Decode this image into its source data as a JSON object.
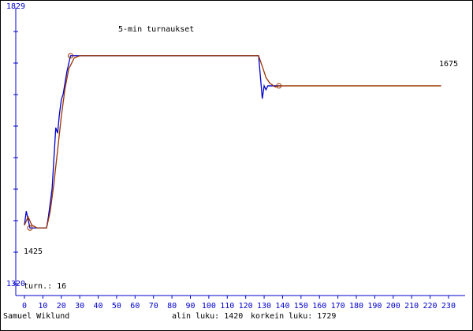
{
  "chart_data": {
    "type": "line",
    "title": "5-min turnaukset",
    "player": "Samuel Wiklund",
    "tournaments_label": "turn.: 16",
    "lowest_label": "alin luku: 1420",
    "highest_label": "korkein luku: 1729",
    "annotations": [
      "1425",
      "1675"
    ],
    "xlim": [
      -4.7,
      239
    ],
    "xticks": [
      0,
      10,
      20,
      30,
      40,
      50,
      60,
      70,
      80,
      90,
      100,
      110,
      120,
      130,
      140,
      150,
      160,
      170,
      180,
      190,
      200,
      210,
      220,
      230
    ],
    "ylim": [
      1320,
      1829
    ],
    "yticks": [
      1320,
      1829
    ],
    "axis_color": "#0000cc",
    "series": [
      {
        "color": "#0000cc",
        "x": [
          0,
          1,
          3,
          12,
          13,
          15,
          16,
          17,
          18,
          19,
          20,
          21,
          23,
          25,
          127,
          129,
          130,
          131,
          132,
          139
        ],
        "values": [
          1425,
          1450,
          1420,
          1420,
          1440,
          1490,
          1545,
          1600,
          1590,
          1625,
          1650,
          1660,
          1700,
          1729,
          1729,
          1652,
          1675,
          1668,
          1675,
          1675
        ]
      },
      {
        "color": "#993300",
        "x": [
          0,
          2,
          4,
          7,
          12,
          14,
          16,
          18,
          20,
          22,
          24,
          27,
          30,
          127,
          129,
          131,
          133,
          136,
          138,
          226
        ],
        "values": [
          1425,
          1440,
          1425,
          1420,
          1420,
          1450,
          1500,
          1560,
          1620,
          1670,
          1705,
          1725,
          1729,
          1729,
          1710,
          1690,
          1680,
          1673,
          1675,
          1675
        ]
      }
    ],
    "markers": {
      "color": "#993300",
      "x": [
        3,
        25,
        138
      ],
      "values": [
        1420,
        1729,
        1675
      ]
    }
  }
}
